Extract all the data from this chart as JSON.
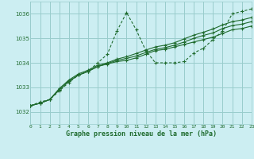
{
  "background_color": "#cceef2",
  "grid_color": "#99cccc",
  "line_color": "#1f6b2e",
  "title": "Graphe pression niveau de la mer (hPa)",
  "xlim": [
    0,
    23
  ],
  "ylim": [
    1031.5,
    1036.5
  ],
  "yticks": [
    1032,
    1033,
    1034,
    1035,
    1036
  ],
  "xticks": [
    0,
    1,
    2,
    3,
    4,
    5,
    6,
    7,
    8,
    9,
    10,
    11,
    12,
    13,
    14,
    15,
    16,
    17,
    18,
    19,
    20,
    21,
    22,
    23
  ],
  "series0": [
    1032.25,
    1032.4,
    1032.5,
    1032.85,
    1033.2,
    1033.5,
    1033.65,
    1034.0,
    1034.35,
    1035.3,
    1036.05,
    1035.35,
    1034.5,
    1034.0,
    1034.0,
    1034.0,
    1034.05,
    1034.4,
    1034.6,
    1034.95,
    1035.3,
    1036.0,
    1036.1,
    1036.2
  ],
  "series1": [
    1032.25,
    1032.35,
    1032.5,
    1032.9,
    1033.25,
    1033.5,
    1033.65,
    1033.85,
    1033.95,
    1034.05,
    1034.1,
    1034.2,
    1034.35,
    1034.5,
    1034.55,
    1034.65,
    1034.75,
    1034.85,
    1034.95,
    1035.05,
    1035.2,
    1035.35,
    1035.4,
    1035.5
  ],
  "series2": [
    1032.25,
    1032.35,
    1032.5,
    1032.9,
    1033.25,
    1033.5,
    1033.65,
    1033.85,
    1033.97,
    1034.1,
    1034.18,
    1034.28,
    1034.42,
    1034.55,
    1034.62,
    1034.72,
    1034.85,
    1035.0,
    1035.12,
    1035.22,
    1035.4,
    1035.52,
    1035.58,
    1035.68
  ],
  "series3": [
    1032.25,
    1032.35,
    1032.5,
    1032.95,
    1033.3,
    1033.55,
    1033.7,
    1033.9,
    1034.0,
    1034.15,
    1034.25,
    1034.38,
    1034.52,
    1034.65,
    1034.72,
    1034.82,
    1034.98,
    1035.13,
    1035.25,
    1035.38,
    1035.55,
    1035.68,
    1035.75,
    1035.85
  ]
}
